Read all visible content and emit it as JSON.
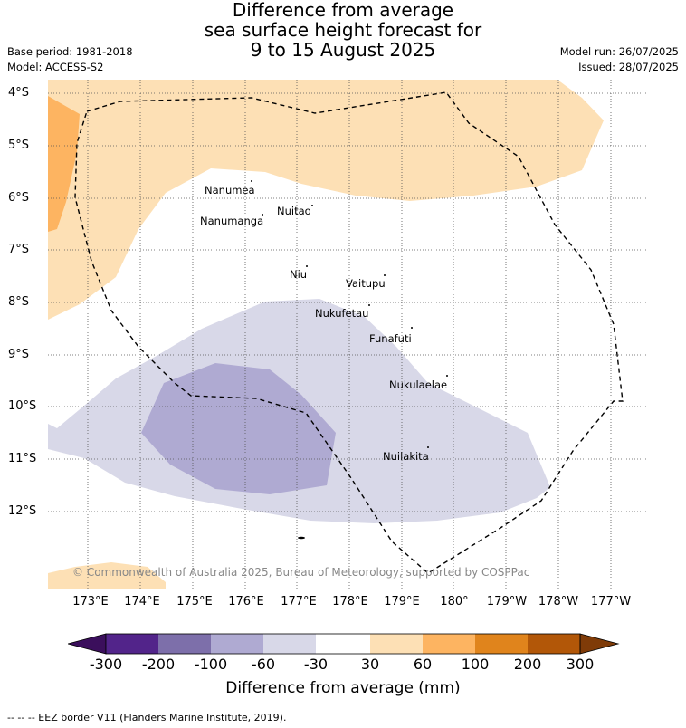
{
  "title": {
    "line1": "Difference from average",
    "line2": "sea surface height forecast for",
    "line3": "9 to 15 August 2025"
  },
  "meta": {
    "base_period": "Base period: 1981-2018",
    "model": "Model: ACCESS-S2",
    "model_run": "Model run: 26/07/2025",
    "issued": "Issued: 28/07/2025"
  },
  "axes": {
    "lat_labels": [
      "4°S",
      "5°S",
      "6°S",
      "7°S",
      "8°S",
      "9°S",
      "10°S",
      "11°S",
      "12°S"
    ],
    "lon_labels": [
      "173°E",
      "174°E",
      "175°E",
      "176°E",
      "177°E",
      "178°E",
      "179°E",
      "180°",
      "179°W",
      "178°W",
      "177°W"
    ]
  },
  "islands": [
    {
      "name": "Nanumea"
    },
    {
      "name": "Nuitao"
    },
    {
      "name": "Nanumanga"
    },
    {
      "name": "Niu"
    },
    {
      "name": "Vaitupu"
    },
    {
      "name": "Nukufetau"
    },
    {
      "name": "Funafuti"
    },
    {
      "name": "Nukulaelae"
    },
    {
      "name": "Nuilakita"
    }
  ],
  "copyright": "© Commonwealth of Australia 2025, Bureau of Meteorology, supported by COSPPac",
  "colorbar": {
    "ticks": [
      "-300",
      "-200",
      "-100",
      "-60",
      "-30",
      "30",
      "60",
      "100",
      "200",
      "300"
    ],
    "colors": [
      "#3b0f5c",
      "#52248a",
      "#7d6faa",
      "#afaad2",
      "#d8d8e8",
      "#ffffff",
      "#fde0b5",
      "#fdb461",
      "#e0841c",
      "#b25708",
      "#7f3b08"
    ],
    "title": "Difference from average (mm)"
  },
  "footer": "-- -- -- EEZ border V11 (Flanders Marine Institute, 2019)."
}
